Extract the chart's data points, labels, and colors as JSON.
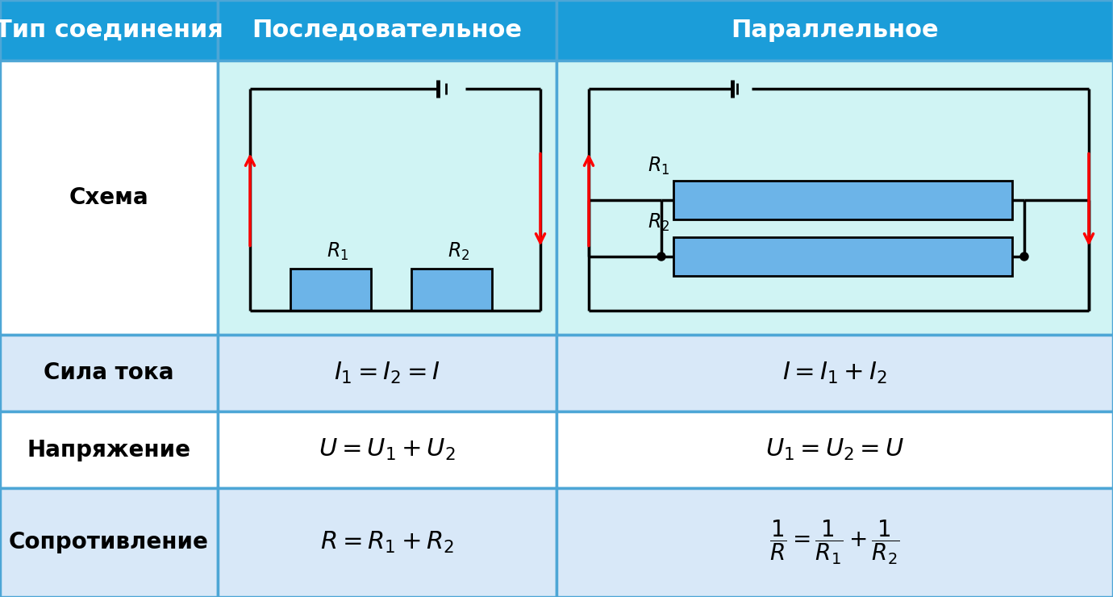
{
  "header_bg": "#1b9dd9",
  "header_text_color": "#ffffff",
  "schema_bg": "#d0f4f4",
  "row_bg_light": "#ffffff",
  "row_bg_alt": "#d8e8f8",
  "grid_color": "#5aaad5",
  "col_header_text": [
    "Тип соединения",
    "Последовательное",
    "Параллельное"
  ],
  "row_labels": [
    "Схема",
    "Сила тока",
    "Напряжение",
    "Сопротивление"
  ],
  "resistor_color": "#6cb4e8",
  "wire_color": "#000000",
  "arrow_color": "#ff0000"
}
